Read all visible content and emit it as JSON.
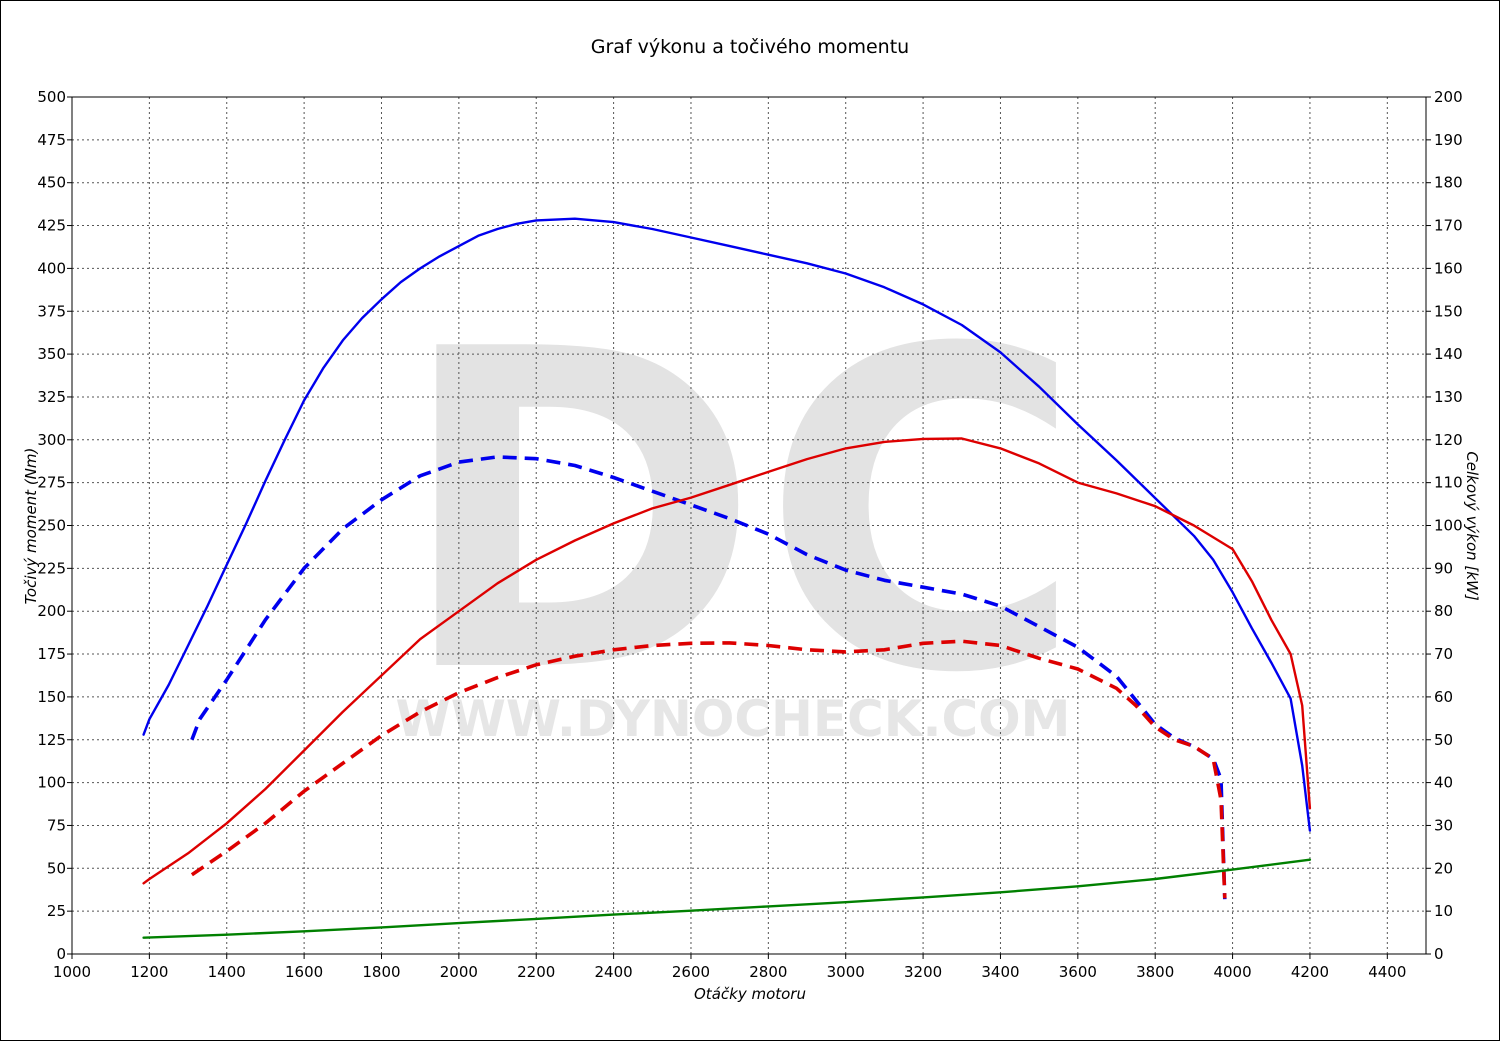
{
  "chart_data": {
    "type": "line",
    "title": "Graf výkonu a točivého momentu",
    "xlabel": "Otáčky motoru",
    "ylabel_left": "Točivý moment (Nm)",
    "ylabel_right": "Celkový výkon [kW]",
    "xlim": [
      1000,
      4500
    ],
    "ylim_left": [
      0,
      500
    ],
    "ylim_right": [
      0,
      200
    ],
    "x_ticks": [
      1000,
      1200,
      1400,
      1600,
      1800,
      2000,
      2200,
      2400,
      2600,
      2800,
      3000,
      3200,
      3400,
      3600,
      3800,
      4000,
      4200,
      4400
    ],
    "y_ticks_left": [
      0,
      25,
      50,
      75,
      100,
      125,
      150,
      175,
      200,
      225,
      250,
      275,
      300,
      325,
      350,
      375,
      400,
      425,
      450,
      475,
      500
    ],
    "y_ticks_right": [
      0,
      10,
      20,
      30,
      40,
      50,
      60,
      70,
      80,
      90,
      100,
      110,
      120,
      130,
      140,
      150,
      160,
      170,
      180,
      190,
      200
    ],
    "grid": true,
    "legend": "none",
    "watermark": {
      "logo": "DC",
      "url": "WWW.DYNOCHECK.COM"
    },
    "series": [
      {
        "axis": "left",
        "color": "#0000ee",
        "dash": "solid",
        "points": [
          [
            1185,
            128
          ],
          [
            1200,
            137
          ],
          [
            1250,
            157
          ],
          [
            1300,
            180
          ],
          [
            1350,
            203
          ],
          [
            1400,
            227
          ],
          [
            1450,
            251
          ],
          [
            1500,
            276
          ],
          [
            1550,
            300
          ],
          [
            1600,
            323
          ],
          [
            1650,
            342
          ],
          [
            1700,
            358
          ],
          [
            1750,
            371
          ],
          [
            1800,
            382
          ],
          [
            1850,
            392
          ],
          [
            1900,
            400
          ],
          [
            1950,
            407
          ],
          [
            2000,
            413
          ],
          [
            2050,
            419
          ],
          [
            2100,
            423
          ],
          [
            2150,
            426
          ],
          [
            2200,
            428
          ],
          [
            2300,
            429
          ],
          [
            2400,
            427
          ],
          [
            2500,
            423
          ],
          [
            2600,
            418
          ],
          [
            2700,
            413
          ],
          [
            2800,
            408
          ],
          [
            2900,
            403
          ],
          [
            3000,
            397
          ],
          [
            3100,
            389
          ],
          [
            3200,
            379
          ],
          [
            3300,
            367
          ],
          [
            3400,
            351
          ],
          [
            3500,
            331
          ],
          [
            3600,
            309
          ],
          [
            3700,
            288
          ],
          [
            3800,
            266
          ],
          [
            3900,
            244
          ],
          [
            3950,
            230
          ],
          [
            4000,
            211
          ],
          [
            4050,
            190
          ],
          [
            4100,
            170
          ],
          [
            4150,
            149
          ],
          [
            4180,
            110
          ],
          [
            4200,
            72
          ]
        ]
      },
      {
        "axis": "left",
        "color": "#0000ee",
        "dash": "dashed",
        "points": [
          [
            1310,
            125
          ],
          [
            1330,
            137
          ],
          [
            1400,
            160
          ],
          [
            1500,
            195
          ],
          [
            1600,
            225
          ],
          [
            1700,
            248
          ],
          [
            1800,
            265
          ],
          [
            1900,
            279
          ],
          [
            2000,
            287
          ],
          [
            2100,
            290
          ],
          [
            2200,
            289
          ],
          [
            2300,
            285
          ],
          [
            2400,
            278
          ],
          [
            2500,
            270
          ],
          [
            2600,
            262
          ],
          [
            2700,
            254
          ],
          [
            2800,
            245
          ],
          [
            2900,
            233
          ],
          [
            3000,
            224
          ],
          [
            3100,
            218
          ],
          [
            3200,
            214
          ],
          [
            3300,
            210
          ],
          [
            3400,
            203
          ],
          [
            3500,
            191
          ],
          [
            3600,
            179
          ],
          [
            3700,
            162
          ],
          [
            3750,
            148
          ],
          [
            3800,
            134
          ],
          [
            3850,
            126
          ],
          [
            3900,
            121
          ],
          [
            3950,
            114
          ],
          [
            3970,
            102
          ],
          [
            3980,
            32
          ]
        ]
      },
      {
        "axis": "right",
        "color": "#dd0000",
        "dash": "solid",
        "points": [
          [
            1185,
            16.5
          ],
          [
            1200,
            17.5
          ],
          [
            1300,
            23.5
          ],
          [
            1400,
            30.5
          ],
          [
            1500,
            38.5
          ],
          [
            1600,
            47.5
          ],
          [
            1700,
            56.5
          ],
          [
            1800,
            65
          ],
          [
            1900,
            73.5
          ],
          [
            2000,
            80
          ],
          [
            2100,
            86.5
          ],
          [
            2200,
            92
          ],
          [
            2300,
            96.5
          ],
          [
            2400,
            100.5
          ],
          [
            2500,
            104
          ],
          [
            2600,
            106.5
          ],
          [
            2700,
            109.5
          ],
          [
            2800,
            112.5
          ],
          [
            2900,
            115.5
          ],
          [
            3000,
            118
          ],
          [
            3100,
            119.5
          ],
          [
            3200,
            120.2
          ],
          [
            3300,
            120.3
          ],
          [
            3400,
            118
          ],
          [
            3500,
            114.5
          ],
          [
            3600,
            110
          ],
          [
            3700,
            107.5
          ],
          [
            3800,
            104.5
          ],
          [
            3900,
            100
          ],
          [
            4000,
            94.5
          ],
          [
            4050,
            87
          ],
          [
            4100,
            78
          ],
          [
            4150,
            70
          ],
          [
            4180,
            58
          ],
          [
            4200,
            34
          ]
        ]
      },
      {
        "axis": "right",
        "color": "#dd0000",
        "dash": "dashed",
        "points": [
          [
            1310,
            18.5
          ],
          [
            1400,
            24
          ],
          [
            1500,
            30.5
          ],
          [
            1600,
            38
          ],
          [
            1700,
            44.5
          ],
          [
            1800,
            51
          ],
          [
            1900,
            56.5
          ],
          [
            2000,
            61
          ],
          [
            2100,
            64.5
          ],
          [
            2200,
            67.5
          ],
          [
            2300,
            69.5
          ],
          [
            2400,
            71
          ],
          [
            2500,
            72
          ],
          [
            2600,
            72.5
          ],
          [
            2700,
            72.6
          ],
          [
            2800,
            72
          ],
          [
            2900,
            71
          ],
          [
            3000,
            70.5
          ],
          [
            3100,
            71
          ],
          [
            3200,
            72.5
          ],
          [
            3300,
            73
          ],
          [
            3400,
            72
          ],
          [
            3500,
            69
          ],
          [
            3600,
            66.5
          ],
          [
            3700,
            62
          ],
          [
            3750,
            58
          ],
          [
            3800,
            53
          ],
          [
            3850,
            50
          ],
          [
            3900,
            48.5
          ],
          [
            3950,
            45.5
          ],
          [
            3970,
            36
          ],
          [
            3980,
            13
          ]
        ]
      },
      {
        "axis": "right",
        "color": "#008000",
        "dash": "solid",
        "points": [
          [
            1185,
            3.8
          ],
          [
            1400,
            4.5
          ],
          [
            1600,
            5.3
          ],
          [
            1800,
            6.2
          ],
          [
            2000,
            7.2
          ],
          [
            2200,
            8.2
          ],
          [
            2400,
            9.2
          ],
          [
            2600,
            10.1
          ],
          [
            2800,
            11.1
          ],
          [
            3000,
            12.1
          ],
          [
            3200,
            13.2
          ],
          [
            3400,
            14.4
          ],
          [
            3600,
            15.8
          ],
          [
            3800,
            17.5
          ],
          [
            4000,
            19.7
          ],
          [
            4200,
            22
          ]
        ]
      }
    ]
  }
}
